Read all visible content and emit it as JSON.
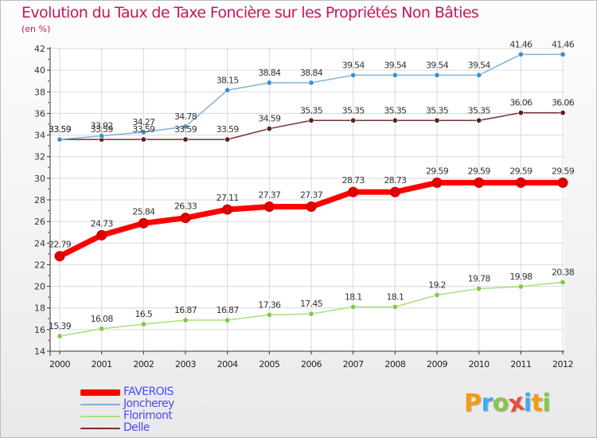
{
  "header": {
    "title": "Evolution du Taux de Taxe Foncière sur les Propriétés Non Bâties",
    "subtitle": "(en %)"
  },
  "brand": {
    "text": "Proxiti",
    "letters": [
      {
        "ch": "P",
        "color": "#f39c12"
      },
      {
        "ch": "r",
        "color": "#3fa9f5"
      },
      {
        "ch": "o",
        "color": "#8bc34a"
      },
      {
        "ch": "x",
        "color": "#e74c3c"
      },
      {
        "ch": "i",
        "color": "#3fa9f5"
      },
      {
        "ch": "t",
        "color": "#f39c12"
      },
      {
        "ch": "i",
        "color": "#8bc34a"
      }
    ]
  },
  "chart_data": {
    "type": "line",
    "title": "Evolution du Taux de Taxe Foncière sur les Propriétés Non Bâties",
    "ylabel": "(en %)",
    "xlabel": "",
    "x": [
      2000,
      2001,
      2002,
      2003,
      2004,
      2005,
      2006,
      2007,
      2008,
      2009,
      2010,
      2011,
      2012
    ],
    "ylim": [
      14,
      42
    ],
    "yticks": [
      14,
      16,
      18,
      20,
      22,
      24,
      26,
      28,
      30,
      32,
      34,
      36,
      38,
      40,
      42
    ],
    "grid": true,
    "legend_position": "bottom-left",
    "series": [
      {
        "name": "FAVEROIS",
        "color": "#ff0000",
        "marker_color": "#e00000",
        "label_color": "#333333",
        "values": [
          22.79,
          24.73,
          25.84,
          26.33,
          27.11,
          27.37,
          27.37,
          28.73,
          28.73,
          29.59,
          29.59,
          29.59,
          29.59
        ],
        "labels": [
          "22.79",
          "24.73",
          "25.84",
          "26.33",
          "27.11",
          "27.37",
          "27.37",
          "28.73",
          "28.73",
          "29.59",
          "29.59",
          "29.59",
          "29.59"
        ]
      },
      {
        "name": "Joncherey",
        "color": "#7fb2d9",
        "marker_color": "#3f8fd0",
        "label_color": "#333333",
        "values": [
          33.59,
          33.92,
          34.27,
          34.78,
          38.15,
          38.84,
          38.84,
          39.54,
          39.54,
          39.54,
          39.54,
          41.46,
          41.46
        ],
        "labels": [
          "33.59",
          "33.92",
          "34.27",
          "34.78",
          "38.15",
          "38.84",
          "38.84",
          "39.54",
          "39.54",
          "39.54",
          "39.54",
          "41.46",
          "41.46"
        ]
      },
      {
        "name": "Florimont",
        "color": "#a6e07a",
        "marker_color": "#7cc94a",
        "label_color": "#333333",
        "values": [
          15.39,
          16.08,
          16.5,
          16.87,
          16.87,
          17.36,
          17.45,
          18.1,
          18.1,
          19.2,
          19.78,
          19.98,
          20.38
        ],
        "labels": [
          "15.39",
          "16.08",
          "16.5",
          "16.87",
          "16.87",
          "17.36",
          "17.45",
          "18.1",
          "18.1",
          "19.2",
          "19.78",
          "19.98",
          "20.38"
        ]
      },
      {
        "name": "Delle",
        "color": "#7a2e2e",
        "marker_color": "#5a1f1f",
        "label_color": "#333333",
        "values": [
          33.59,
          33.59,
          33.59,
          33.59,
          33.59,
          34.59,
          35.35,
          35.35,
          35.35,
          35.35,
          35.35,
          36.06,
          36.06
        ],
        "labels": [
          "33.59",
          "33.59",
          "33.59",
          "33.59",
          "33.59",
          "34.59",
          "35.35",
          "35.35",
          "35.35",
          "35.35",
          "35.35",
          "36.06",
          "36.06"
        ]
      }
    ]
  },
  "legend": {
    "items": [
      {
        "label": "FAVEROIS",
        "color": "#ff0000",
        "text_color": "#4a4aff"
      },
      {
        "label": "Joncherey",
        "color": "#7fb2d9",
        "text_color": "#4a4aff"
      },
      {
        "label": "Florimont",
        "color": "#a6e07a",
        "text_color": "#4a4aff"
      },
      {
        "label": "Delle",
        "color": "#7a2e2e",
        "text_color": "#4a4aff"
      }
    ]
  }
}
